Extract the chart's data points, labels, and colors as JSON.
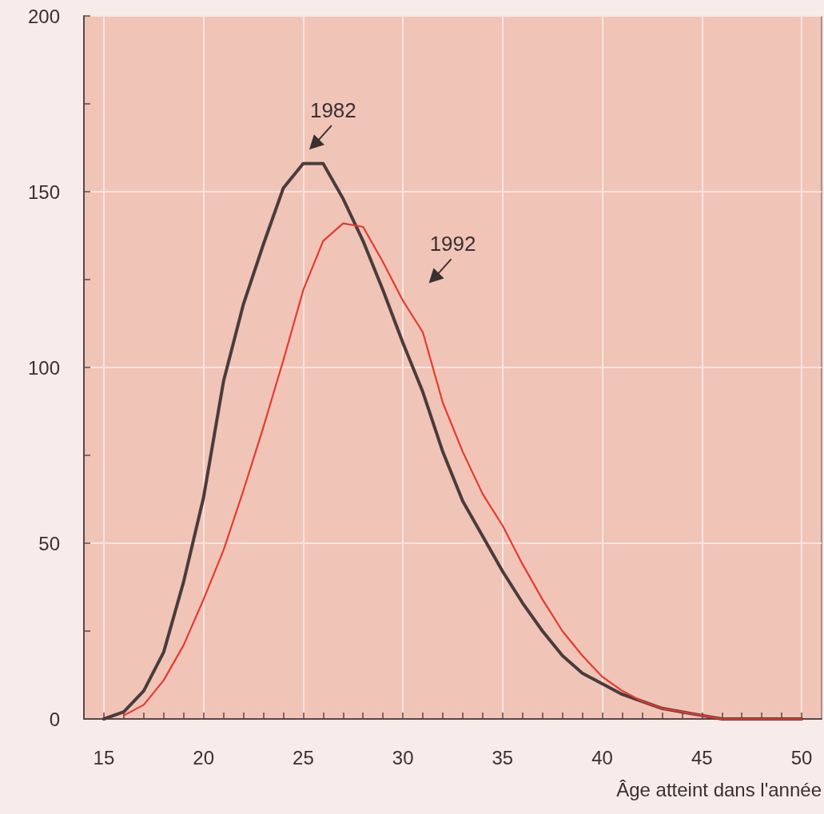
{
  "chart_data": {
    "type": "line",
    "xlabel": "Âge atteint dans l'année",
    "xlim": [
      14,
      51
    ],
    "xticks": [
      15,
      {
        "value": 16,
        "label": null
      },
      {
        "value": 17,
        "label": null
      },
      {
        "value": 18,
        "label": null
      },
      {
        "value": 19,
        "label": null
      },
      20,
      {
        "value": 21,
        "label": null
      },
      {
        "value": 22,
        "label": null
      },
      {
        "value": 23,
        "label": null
      },
      {
        "value": 24,
        "label": null
      },
      25,
      {
        "value": 26,
        "label": null
      },
      {
        "value": 27,
        "label": null
      },
      {
        "value": 28,
        "label": null
      },
      {
        "value": 29,
        "label": null
      },
      30,
      {
        "value": 31,
        "label": null
      },
      {
        "value": 32,
        "label": null
      },
      {
        "value": 33,
        "label": null
      },
      {
        "value": 34,
        "label": null
      },
      35,
      {
        "value": 36,
        "label": null
      },
      {
        "value": 37,
        "label": null
      },
      {
        "value": 38,
        "label": null
      },
      {
        "value": 39,
        "label": null
      },
      40,
      {
        "value": 41,
        "label": null
      },
      {
        "value": 42,
        "label": null
      },
      {
        "value": 43,
        "label": null
      },
      {
        "value": 44,
        "label": null
      },
      45,
      {
        "value": 46,
        "label": null
      },
      {
        "value": 47,
        "label": null
      },
      {
        "value": 48,
        "label": null
      },
      {
        "value": 49,
        "label": null
      },
      50
    ],
    "ylim": [
      0,
      200
    ],
    "yticks": [
      0,
      {
        "value": 25,
        "label": null
      },
      50,
      {
        "value": 75,
        "label": null
      },
      100,
      {
        "value": 125,
        "label": null
      },
      150,
      {
        "value": 175,
        "label": null
      },
      200
    ],
    "grid": true,
    "marker": "none",
    "line_style": "solid",
    "legend": false,
    "series": [
      {
        "name": "1982",
        "color": "#4a3c3c",
        "x": [
          15,
          16,
          17,
          18,
          19,
          20,
          21,
          22,
          23,
          24,
          25,
          26,
          27,
          28,
          29,
          30,
          31,
          32,
          33,
          34,
          35,
          36,
          37,
          38,
          39,
          40,
          41,
          42,
          43,
          44,
          45,
          46,
          47,
          48,
          49,
          50
        ],
        "values": [
          0,
          2,
          8,
          19,
          39,
          63,
          96,
          118,
          135,
          151,
          158,
          158,
          148,
          136,
          122,
          107,
          93,
          76,
          62,
          52,
          42,
          33,
          25,
          18,
          13,
          10,
          7,
          5,
          3,
          2,
          1,
          0,
          0,
          0,
          0,
          0
        ]
      },
      {
        "name": "1992",
        "color": "#e63a2e",
        "x": [
          16,
          17,
          18,
          19,
          20,
          21,
          22,
          23,
          24,
          25,
          26,
          27,
          28,
          29,
          30,
          31,
          32,
          33,
          34,
          35,
          36,
          37,
          38,
          39,
          40,
          41,
          42,
          43,
          44,
          45,
          46,
          47,
          48,
          49,
          50
        ],
        "values": [
          1,
          4,
          11,
          21,
          34,
          48,
          65,
          83,
          102,
          122,
          136,
          141,
          140,
          130,
          119,
          110,
          90,
          76,
          64,
          55,
          44,
          34,
          25,
          18,
          12,
          8,
          5,
          3,
          2,
          1,
          0,
          0,
          0,
          0,
          0
        ]
      }
    ]
  }
}
